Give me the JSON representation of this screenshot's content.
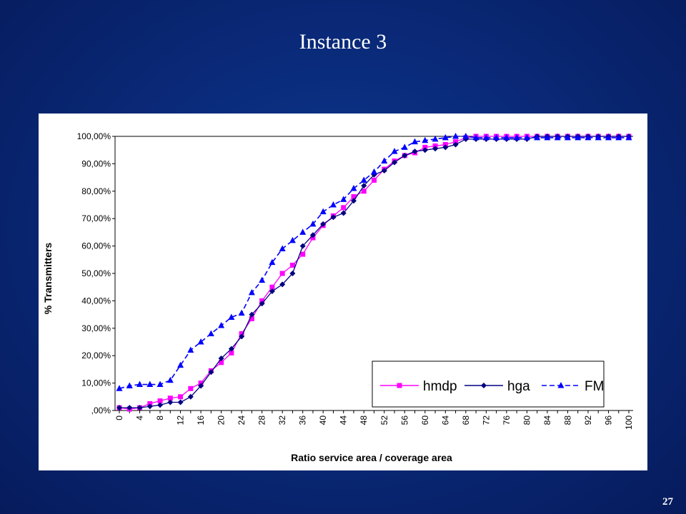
{
  "slide": {
    "title": "Instance 3",
    "page_number": "27"
  },
  "colors": {
    "background": "#0a2a7a",
    "hmdp": "#ff00ff",
    "hga": "#000080",
    "FM": "#0000ff"
  },
  "chart_data": {
    "type": "line",
    "title": "",
    "xlabel": "Ratio  service area / coverage area",
    "ylabel": "% Transmitters",
    "x": [
      0,
      2,
      4,
      6,
      8,
      10,
      12,
      14,
      16,
      18,
      20,
      22,
      24,
      26,
      28,
      30,
      32,
      34,
      36,
      38,
      40,
      42,
      44,
      46,
      48,
      50,
      52,
      54,
      56,
      58,
      60,
      62,
      64,
      66,
      68,
      70,
      72,
      74,
      76,
      78,
      80,
      82,
      84,
      86,
      88,
      90,
      92,
      94,
      96,
      98,
      100
    ],
    "x_tick_labels": [
      "0",
      "4",
      "8",
      "12",
      "16",
      "20",
      "24",
      "28",
      "32",
      "36",
      "40",
      "44",
      "48",
      "52",
      "56",
      "60",
      "64",
      "68",
      "72",
      "76",
      "80",
      "84",
      "88",
      "92",
      "96",
      "100"
    ],
    "y_tick_labels": [
      ",00%",
      "10,00%",
      "20,00%",
      "30,00%",
      "40,00%",
      "50,00%",
      "60,00%",
      "70,00%",
      "80,00%",
      "90,00%",
      "100,00%"
    ],
    "ylim": [
      0,
      100
    ],
    "grid": "horizontal line at 100%",
    "legend_position": "bottom-right",
    "series": [
      {
        "name": "hmdp",
        "color": "#ff00ff",
        "marker": "square",
        "line": "solid",
        "values": [
          1,
          0.5,
          1,
          2.5,
          3.5,
          4.5,
          5,
          8,
          10,
          14.5,
          17.5,
          21,
          28,
          33.5,
          40,
          45,
          50,
          53,
          57,
          63,
          67.5,
          71,
          74,
          78,
          80,
          84,
          88,
          91,
          93,
          94,
          96,
          96.5,
          97,
          98,
          99.5,
          100,
          100,
          100,
          100,
          100,
          100,
          100,
          100,
          100,
          100,
          100,
          100,
          100,
          100,
          100,
          100
        ]
      },
      {
        "name": "hga",
        "color": "#000080",
        "marker": "diamond",
        "line": "solid",
        "values": [
          1,
          1,
          1,
          1.5,
          2,
          3,
          3,
          5,
          9,
          14,
          19,
          22.5,
          27,
          35,
          39,
          43.5,
          46,
          50,
          60,
          64,
          68,
          70.5,
          72,
          76.5,
          82,
          86,
          87.5,
          90.5,
          93,
          94.5,
          95,
          95.5,
          96,
          97,
          99,
          99,
          99,
          99,
          99,
          99,
          99,
          100,
          100,
          100,
          100,
          100,
          100,
          100,
          100,
          100,
          100
        ]
      },
      {
        "name": "FM",
        "color": "#0000ff",
        "marker": "triangle",
        "line": "dashed",
        "values": [
          8,
          9,
          9.5,
          9.5,
          9.5,
          11,
          16.5,
          22,
          25,
          28,
          31,
          34,
          35.5,
          43,
          47.5,
          54,
          59,
          62,
          65,
          68,
          72.5,
          75,
          77,
          81,
          84,
          87,
          91,
          94.5,
          96,
          98,
          98.5,
          99,
          99.5,
          100,
          100,
          99.5,
          99.5,
          99.5,
          99.5,
          99.5,
          99.5,
          99.5,
          99.5,
          99.5,
          99.5,
          99.5,
          99.5,
          99.5,
          99.5,
          99.5,
          99.5
        ]
      }
    ]
  }
}
